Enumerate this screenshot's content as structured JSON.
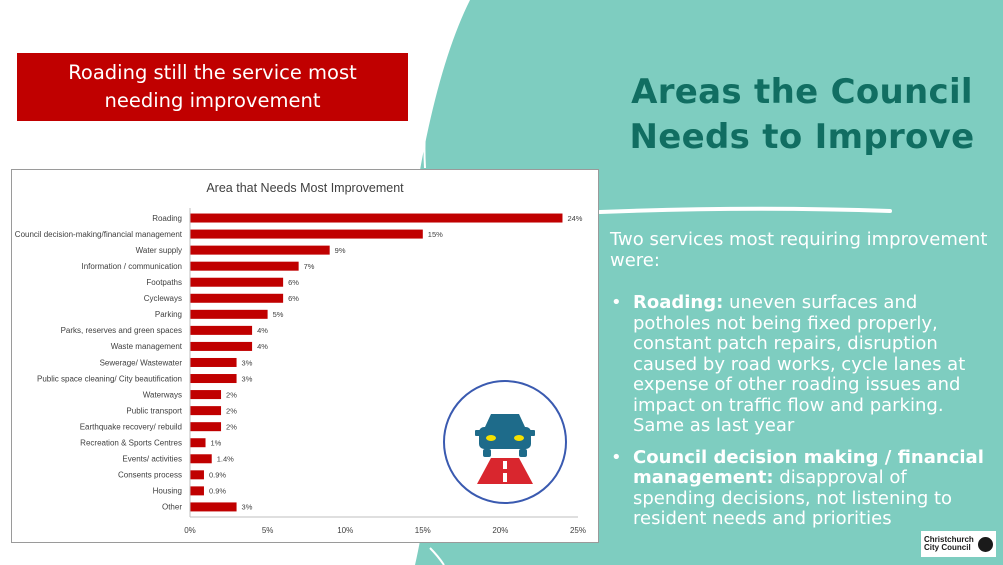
{
  "banner": {
    "line1": "Roading still the service most",
    "line2": "needing improvement"
  },
  "heading": {
    "line1": "Areas the Council",
    "line2": "Needs to Improve"
  },
  "panel": {
    "intro": "Two services most requiring improvement were:",
    "bullets": [
      {
        "bold": "Roading:",
        "text": " uneven surfaces and potholes not being fixed properly, constant patch repairs, disruption caused by road works, cycle lanes at expense of other roading issues and impact on traffic flow and parking. Same as last year"
      },
      {
        "bold": "Council decision making / financial management:",
        "text": " disapproval of spending decisions, not listening to resident needs and priorities"
      }
    ]
  },
  "logo": {
    "line1": "Christchurch",
    "line2": "City Council"
  },
  "colors": {
    "teal_bg": "#7ecdc0",
    "heading": "#116e62",
    "bar": "#c00000",
    "banner": "#c00000",
    "icon_ring": "#3a5ab0",
    "icon_car": "#1e6b8a",
    "icon_road": "#d9262e"
  },
  "icon": "car-and-road-icon",
  "chart_data": {
    "type": "bar",
    "orientation": "horizontal",
    "title": "Area that Needs Most Improvement",
    "categories": [
      "Roading",
      "Council decision-making/financial management",
      "Water supply",
      "Information / communication",
      "Footpaths",
      "Cycleways",
      "Parking",
      "Parks, reserves and green spaces",
      "Waste management",
      "Sewerage/ Wastewater",
      "Public space cleaning/ City beautification",
      "Waterways",
      "Public transport",
      "Earthquake recovery/ rebuild",
      "Recreation & Sports Centres",
      "Events/ activities",
      "Consents process",
      "Housing",
      "Other"
    ],
    "values": [
      24,
      15,
      9,
      7,
      6,
      6,
      5,
      4,
      4,
      3,
      3,
      2,
      2,
      2,
      1,
      1.4,
      0.9,
      0.9,
      3
    ],
    "labels": [
      "24%",
      "15%",
      "9%",
      "7%",
      "6%",
      "6%",
      "5%",
      "4%",
      "4%",
      "3%",
      "3%",
      "2%",
      "2%",
      "2%",
      "1%",
      "1.4%",
      "0.9%",
      "0.9%",
      "3%"
    ],
    "xticks": [
      "0%",
      "5%",
      "10%",
      "15%",
      "20%",
      "25%"
    ],
    "xlim": [
      0,
      25
    ],
    "grid": false,
    "legend": "none"
  }
}
